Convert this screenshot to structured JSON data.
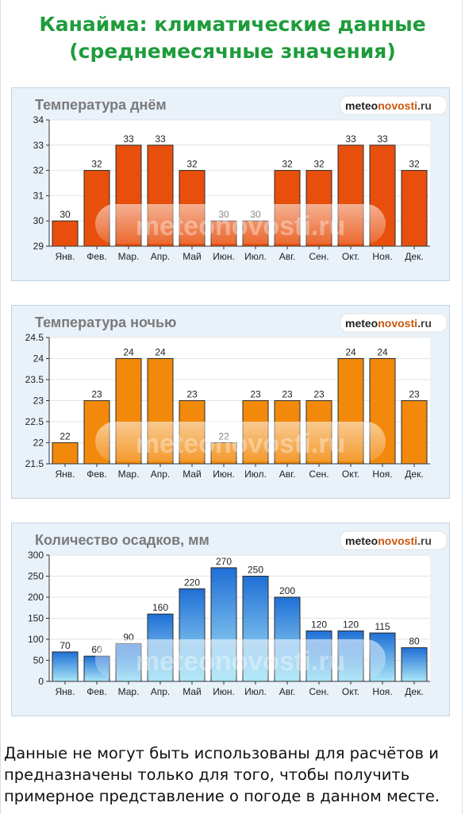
{
  "page": {
    "title": "Канайма: климатические данные (среднемесячные значения)",
    "footnote": "Данные не могут быть использованы для расчётов и предназначены только для того, чтобы получить примерное представление о погоде в данном месте."
  },
  "watermark": "meteonovosti.ru",
  "brand": {
    "part1": "meteo",
    "part2": "novosti",
    "part3": ".ru"
  },
  "colors": {
    "title": "#1e9c3c",
    "day_bar": "#e84f0c",
    "night_bar": "#f2890a",
    "precip_top": "#1f6fd6",
    "precip_bottom": "#a9e6f7"
  },
  "chart_data": [
    {
      "type": "bar",
      "title": "Температура днём",
      "categories": [
        "Янв.",
        "Фев.",
        "Мар.",
        "Апр.",
        "Май",
        "Июн.",
        "Июл.",
        "Авг.",
        "Сен.",
        "Окт.",
        "Ноя.",
        "Дек."
      ],
      "values": [
        30,
        32,
        33,
        33,
        32,
        30,
        30,
        32,
        32,
        33,
        33,
        32
      ],
      "ylim": [
        29,
        34
      ],
      "yticks": [
        29,
        30,
        31,
        32,
        33,
        34
      ],
      "grid": true
    },
    {
      "type": "bar",
      "title": "Температура ночью",
      "categories": [
        "Янв.",
        "Фев.",
        "Мар.",
        "Апр.",
        "Май",
        "Июн.",
        "Июл.",
        "Авг.",
        "Сен.",
        "Окт.",
        "Ноя.",
        "Дек."
      ],
      "values": [
        22,
        23,
        24,
        24,
        23,
        22,
        23,
        23,
        23,
        24,
        24,
        23
      ],
      "ylim": [
        21.5,
        24.5
      ],
      "yticks": [
        21.5,
        22,
        22.5,
        23,
        23.5,
        24,
        24.5
      ],
      "grid": true
    },
    {
      "type": "bar",
      "title": "Количество осадков, мм",
      "categories": [
        "Янв.",
        "Фев.",
        "Мар.",
        "Апр.",
        "Май",
        "Июн.",
        "Июл.",
        "Авг.",
        "Сен.",
        "Окт.",
        "Ноя.",
        "Дек."
      ],
      "values": [
        70,
        60,
        90,
        160,
        220,
        270,
        250,
        200,
        120,
        120,
        115,
        80
      ],
      "ylim": [
        0,
        300
      ],
      "yticks": [
        0,
        50,
        100,
        150,
        200,
        250,
        300
      ],
      "grid": true
    }
  ]
}
